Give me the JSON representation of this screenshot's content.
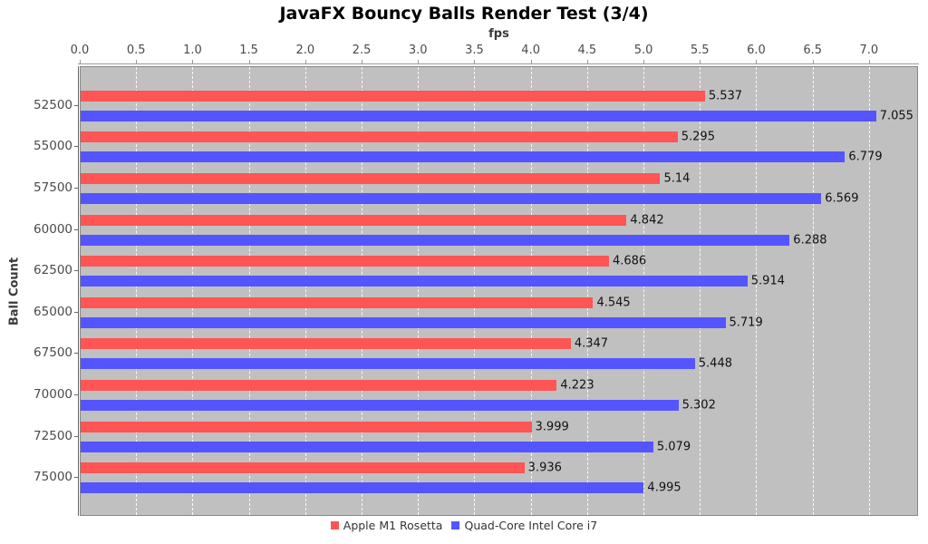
{
  "title": "JavaFX Bouncy Balls Render Test (3/4)",
  "chart_data": {
    "type": "bar",
    "orientation": "horizontal",
    "title": "JavaFX Bouncy Balls Render Test (3/4)",
    "xlabel": "fps",
    "ylabel": "Ball Count",
    "xlim": [
      0,
      7.435
    ],
    "x_ticks": [
      0.0,
      0.5,
      1.0,
      1.5,
      2.0,
      2.5,
      3.0,
      3.5,
      4.0,
      4.5,
      5.0,
      5.5,
      6.0,
      6.5,
      7.0
    ],
    "grid": "vertical white dashed",
    "plot_background": "#C0C0C0",
    "legend_position": "bottom-center",
    "categories": [
      "52500",
      "55000",
      "57500",
      "60000",
      "62500",
      "65000",
      "67500",
      "70000",
      "72500",
      "75000"
    ],
    "series": [
      {
        "name": "Apple M1 Rosetta",
        "color": "#FF5555",
        "values": [
          5.537,
          5.295,
          5.14,
          4.842,
          4.686,
          4.545,
          4.347,
          4.223,
          3.999,
          3.936
        ],
        "value_labels": [
          "5.537",
          "5.295",
          "5.14",
          "4.842",
          "4.686",
          "4.545",
          "4.347",
          "4.223",
          "3.999",
          "3.936"
        ]
      },
      {
        "name": "Quad-Core Intel Core i7",
        "color": "#5555FF",
        "values": [
          7.055,
          6.779,
          6.569,
          6.288,
          5.914,
          5.719,
          5.448,
          5.302,
          5.079,
          4.995
        ],
        "value_labels": [
          "7.055",
          "6.779",
          "6.569",
          "6.288",
          "5.914",
          "5.719",
          "5.448",
          "5.302",
          "5.079",
          "4.995"
        ]
      }
    ]
  }
}
